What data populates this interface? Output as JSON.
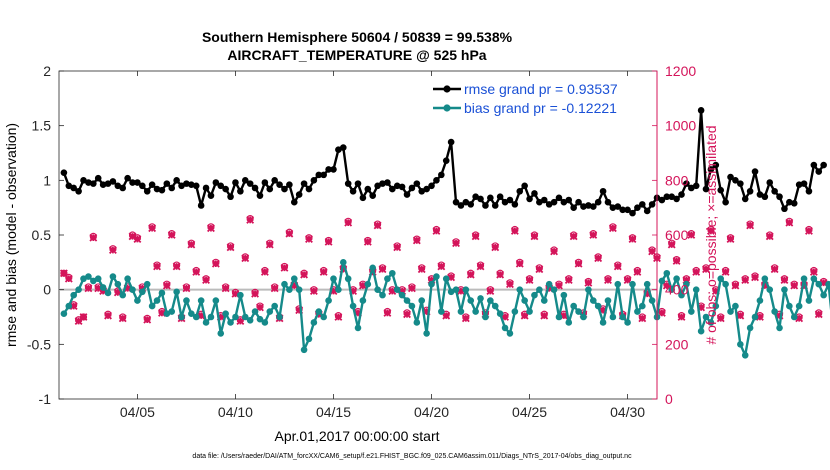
{
  "chart_data": {
    "type": "line",
    "title": "Southern Hemisphere 50604 / 50839 = 99.538%",
    "subtitle": "AIRCRAFT_TEMPERATURE @ 525 hPa",
    "xlabel": "Apr.01,2017 00:00:00 start",
    "ylabel_left": "rmse and bias (model - observation)",
    "ylabel_right": "# of obs: o=possible; ×=assimilated",
    "footer": "data file: /Users/raeder/DAI/ATM_forcXX/CAM6_setup/f.e21.FHIST_BGC.f09_025.CAM6assim.011/Diags_NTrS_2017-04/obs_diag_output.nc",
    "xlim": [
      1.0,
      31.5
    ],
    "ylim_left": [
      -1,
      2
    ],
    "ylim_right": [
      0,
      1200
    ],
    "x_ticks": [
      5,
      10,
      15,
      20,
      25,
      30
    ],
    "x_tick_labels": [
      "04/05",
      "04/10",
      "04/15",
      "04/20",
      "04/25",
      "04/30"
    ],
    "y_ticks_left": [
      -1,
      -0.5,
      0,
      0.5,
      1,
      1.5,
      2
    ],
    "y_tick_labels_left": [
      "-1",
      "-0.5",
      "0",
      "0.5",
      "1",
      "1.5",
      "2"
    ],
    "y_ticks_right": [
      0,
      200,
      400,
      600,
      800,
      1000,
      1200
    ],
    "y_tick_labels_right": [
      "0",
      "200",
      "400",
      "600",
      "800",
      "1000",
      "1200"
    ],
    "zero_line": 0,
    "colors": {
      "rmse": "#000000",
      "bias": "#158a8a",
      "obs": "#d4145a",
      "zero": "#bbbbbb",
      "legend_text": "#1a50d6"
    },
    "legend": {
      "location": "top-right",
      "entries": [
        "rmse grand pr = 0.93537",
        "bias grand pr = -0.12221"
      ]
    },
    "start_day": 1.25,
    "step_days": 0.25,
    "series": [
      {
        "name": "rmse",
        "values": [
          1.07,
          0.95,
          0.93,
          0.9,
          1.0,
          0.98,
          0.97,
          1.02,
          0.96,
          0.97,
          0.99,
          0.95,
          0.93,
          1.02,
          0.98,
          0.98,
          0.95,
          0.9,
          0.96,
          0.92,
          0.91,
          0.97,
          0.93,
          1.0,
          0.95,
          0.97,
          0.96,
          0.95,
          0.77,
          0.93,
          0.86,
          0.98,
          0.95,
          0.92,
          0.85,
          0.98,
          0.9,
          1.0,
          0.97,
          0.93,
          0.86,
          0.98,
          0.92,
          1.0,
          0.96,
          0.92,
          0.96,
          0.8,
          0.87,
          0.97,
          0.92,
          1.0,
          1.05,
          1.05,
          1.1,
          1.1,
          1.28,
          1.3,
          0.97,
          0.9,
          0.97,
          0.84,
          0.92,
          0.86,
          0.95,
          0.97,
          0.98,
          0.92,
          0.95,
          0.94,
          0.87,
          0.93,
          0.97,
          0.9,
          0.92,
          0.95,
          1.0,
          1.05,
          1.18,
          1.35,
          0.8,
          0.77,
          0.8,
          0.78,
          0.85,
          0.83,
          0.77,
          0.84,
          0.77,
          0.85,
          0.8,
          0.82,
          0.78,
          0.9,
          0.95,
          0.83,
          0.88,
          0.8,
          0.82,
          0.78,
          0.8,
          0.84,
          0.8,
          0.82,
          0.75,
          0.8,
          0.76,
          0.77,
          0.76,
          0.8,
          0.9,
          0.8,
          0.75,
          0.76,
          0.73,
          0.73,
          0.7,
          0.75,
          0.78,
          0.72,
          0.78,
          0.84,
          0.82,
          0.85,
          0.85,
          0.83,
          0.87,
          0.97,
          0.93,
          0.95,
          1.64,
          0.92,
          1.1,
          1.14,
          0.91,
          0.8,
          1.03,
          1.0,
          0.97,
          0.83,
          0.9,
          1.08,
          0.87,
          0.85,
          0.98,
          0.9,
          0.85,
          0.74,
          0.8,
          0.79,
          0.96,
          0.97,
          0.9,
          1.14,
          1.08,
          1.14
        ]
      },
      {
        "name": "bias",
        "values": [
          -0.22,
          -0.15,
          -0.05,
          0.0,
          0.1,
          0.12,
          0.08,
          0.1,
          0.02,
          -0.03,
          0.12,
          0.05,
          -0.05,
          0.1,
          0.0,
          -0.1,
          -0.02,
          0.05,
          -0.15,
          -0.1,
          -0.03,
          -0.22,
          -0.2,
          -0.02,
          -0.25,
          -0.1,
          -0.22,
          -0.25,
          -0.1,
          -0.3,
          -0.25,
          -0.1,
          -0.4,
          -0.22,
          -0.3,
          -0.25,
          -0.05,
          -0.25,
          -0.28,
          -0.2,
          -0.27,
          -0.3,
          -0.2,
          -0.15,
          -0.25,
          0.05,
          0.0,
          0.1,
          0.0,
          -0.55,
          -0.45,
          -0.3,
          -0.2,
          -0.25,
          -0.1,
          0.1,
          0.0,
          0.25,
          0.1,
          -0.15,
          -0.35,
          -0.1,
          0.05,
          0.2,
          0.0,
          -0.05,
          0.1,
          0.15,
          0.0,
          -0.05,
          -0.1,
          -0.15,
          -0.3,
          -0.1,
          -0.4,
          0.05,
          0.12,
          -0.2,
          0.1,
          -0.02,
          0.0,
          -0.2,
          0.0,
          -0.1,
          -0.2,
          -0.08,
          -0.25,
          -0.1,
          -0.15,
          -0.22,
          -0.35,
          -0.4,
          -0.2,
          0.0,
          -0.1,
          -0.2,
          -0.05,
          0.0,
          -0.1,
          0.05,
          0.0,
          -0.25,
          -0.05,
          -0.3,
          -0.15,
          -0.2,
          -0.25,
          0.0,
          -0.1,
          -0.15,
          -0.3,
          -0.1,
          -0.25,
          0.05,
          -0.25,
          -0.3,
          0.05,
          -0.2,
          -0.15,
          0.05,
          -0.1,
          -0.25,
          0.08,
          0.15,
          0.0,
          0.1,
          -0.05,
          0.05,
          -0.2,
          0.0,
          -0.38,
          -0.25,
          -0.3,
          -0.15,
          0.1,
          0.05,
          -0.2,
          -0.15,
          -0.5,
          -0.6,
          -0.35,
          -0.25,
          -0.1,
          0.1,
          0.0,
          -0.2,
          -0.35,
          0.0,
          -0.15,
          -0.25,
          -0.15,
          0.1,
          -0.1,
          0.1,
          0.05,
          -0.05,
          0.05,
          -0.4
        ]
      },
      {
        "name": "obs_possible",
        "values": [
          460,
          445,
          345,
          290,
          300,
          410,
          595,
          410,
          400,
          310,
          550,
          395,
          300,
          410,
          600,
          590,
          410,
          295,
          630,
          490,
          320,
          420,
          605,
          490,
          300,
          410,
          570,
          470,
          310,
          440,
          630,
          500,
          305,
          410,
          560,
          390,
          290,
          520,
          660,
          390,
          340,
          470,
          570,
          410,
          300,
          485,
          610,
          420,
          330,
          460,
          590,
          400,
          315,
          470,
          580,
          400,
          305,
          480,
          650,
          400,
          320,
          420,
          580,
          470,
          640,
          480,
          320,
          400,
          560,
          400,
          315,
          410,
          585,
          480,
          325,
          440,
          620,
          490,
          310,
          450,
          575,
          400,
          300,
          460,
          600,
          490,
          315,
          400,
          560,
          460,
          305,
          425,
          620,
          500,
          310,
          440,
          600,
          480,
          310,
          410,
          545,
          420,
          310,
          440,
          600,
          500,
          315,
          430,
          605,
          520,
          330,
          440,
          630,
          490,
          310,
          440,
          590,
          470,
          300,
          390,
          545,
          520,
          320,
          420,
          570,
          510,
          305,
          440,
          605,
          470,
          340,
          480,
          620,
          400,
          300,
          470,
          590,
          420,
          310,
          440,
          640,
          450,
          305,
          420,
          600,
          480,
          310,
          440,
          650,
          420,
          300,
          420,
          620,
          470,
          315,
          430
        ]
      },
      {
        "name": "obs_assimilated",
        "values": [
          460,
          440,
          340,
          285,
          300,
          405,
          590,
          405,
          395,
          305,
          545,
          390,
          295,
          405,
          595,
          585,
          405,
          290,
          625,
          485,
          315,
          415,
          600,
          485,
          295,
          405,
          565,
          465,
          305,
          435,
          625,
          495,
          300,
          405,
          555,
          385,
          285,
          515,
          655,
          385,
          335,
          465,
          565,
          405,
          295,
          480,
          605,
          415,
          325,
          455,
          585,
          395,
          310,
          465,
          575,
          395,
          300,
          475,
          645,
          395,
          315,
          415,
          575,
          465,
          635,
          475,
          315,
          395,
          555,
          395,
          310,
          405,
          580,
          475,
          320,
          435,
          615,
          485,
          305,
          445,
          570,
          395,
          295,
          455,
          595,
          485,
          310,
          395,
          555,
          455,
          300,
          420,
          615,
          495,
          305,
          435,
          595,
          475,
          305,
          405,
          540,
          415,
          305,
          435,
          595,
          495,
          310,
          425,
          600,
          515,
          325,
          435,
          625,
          485,
          305,
          435,
          585,
          465,
          295,
          385,
          540,
          515,
          315,
          415,
          565,
          505,
          300,
          435,
          600,
          465,
          335,
          475,
          615,
          395,
          295,
          465,
          585,
          415,
          305,
          435,
          635,
          445,
          300,
          415,
          595,
          475,
          305,
          435,
          645,
          415,
          295,
          415,
          615,
          465,
          310,
          425
        ]
      }
    ]
  }
}
